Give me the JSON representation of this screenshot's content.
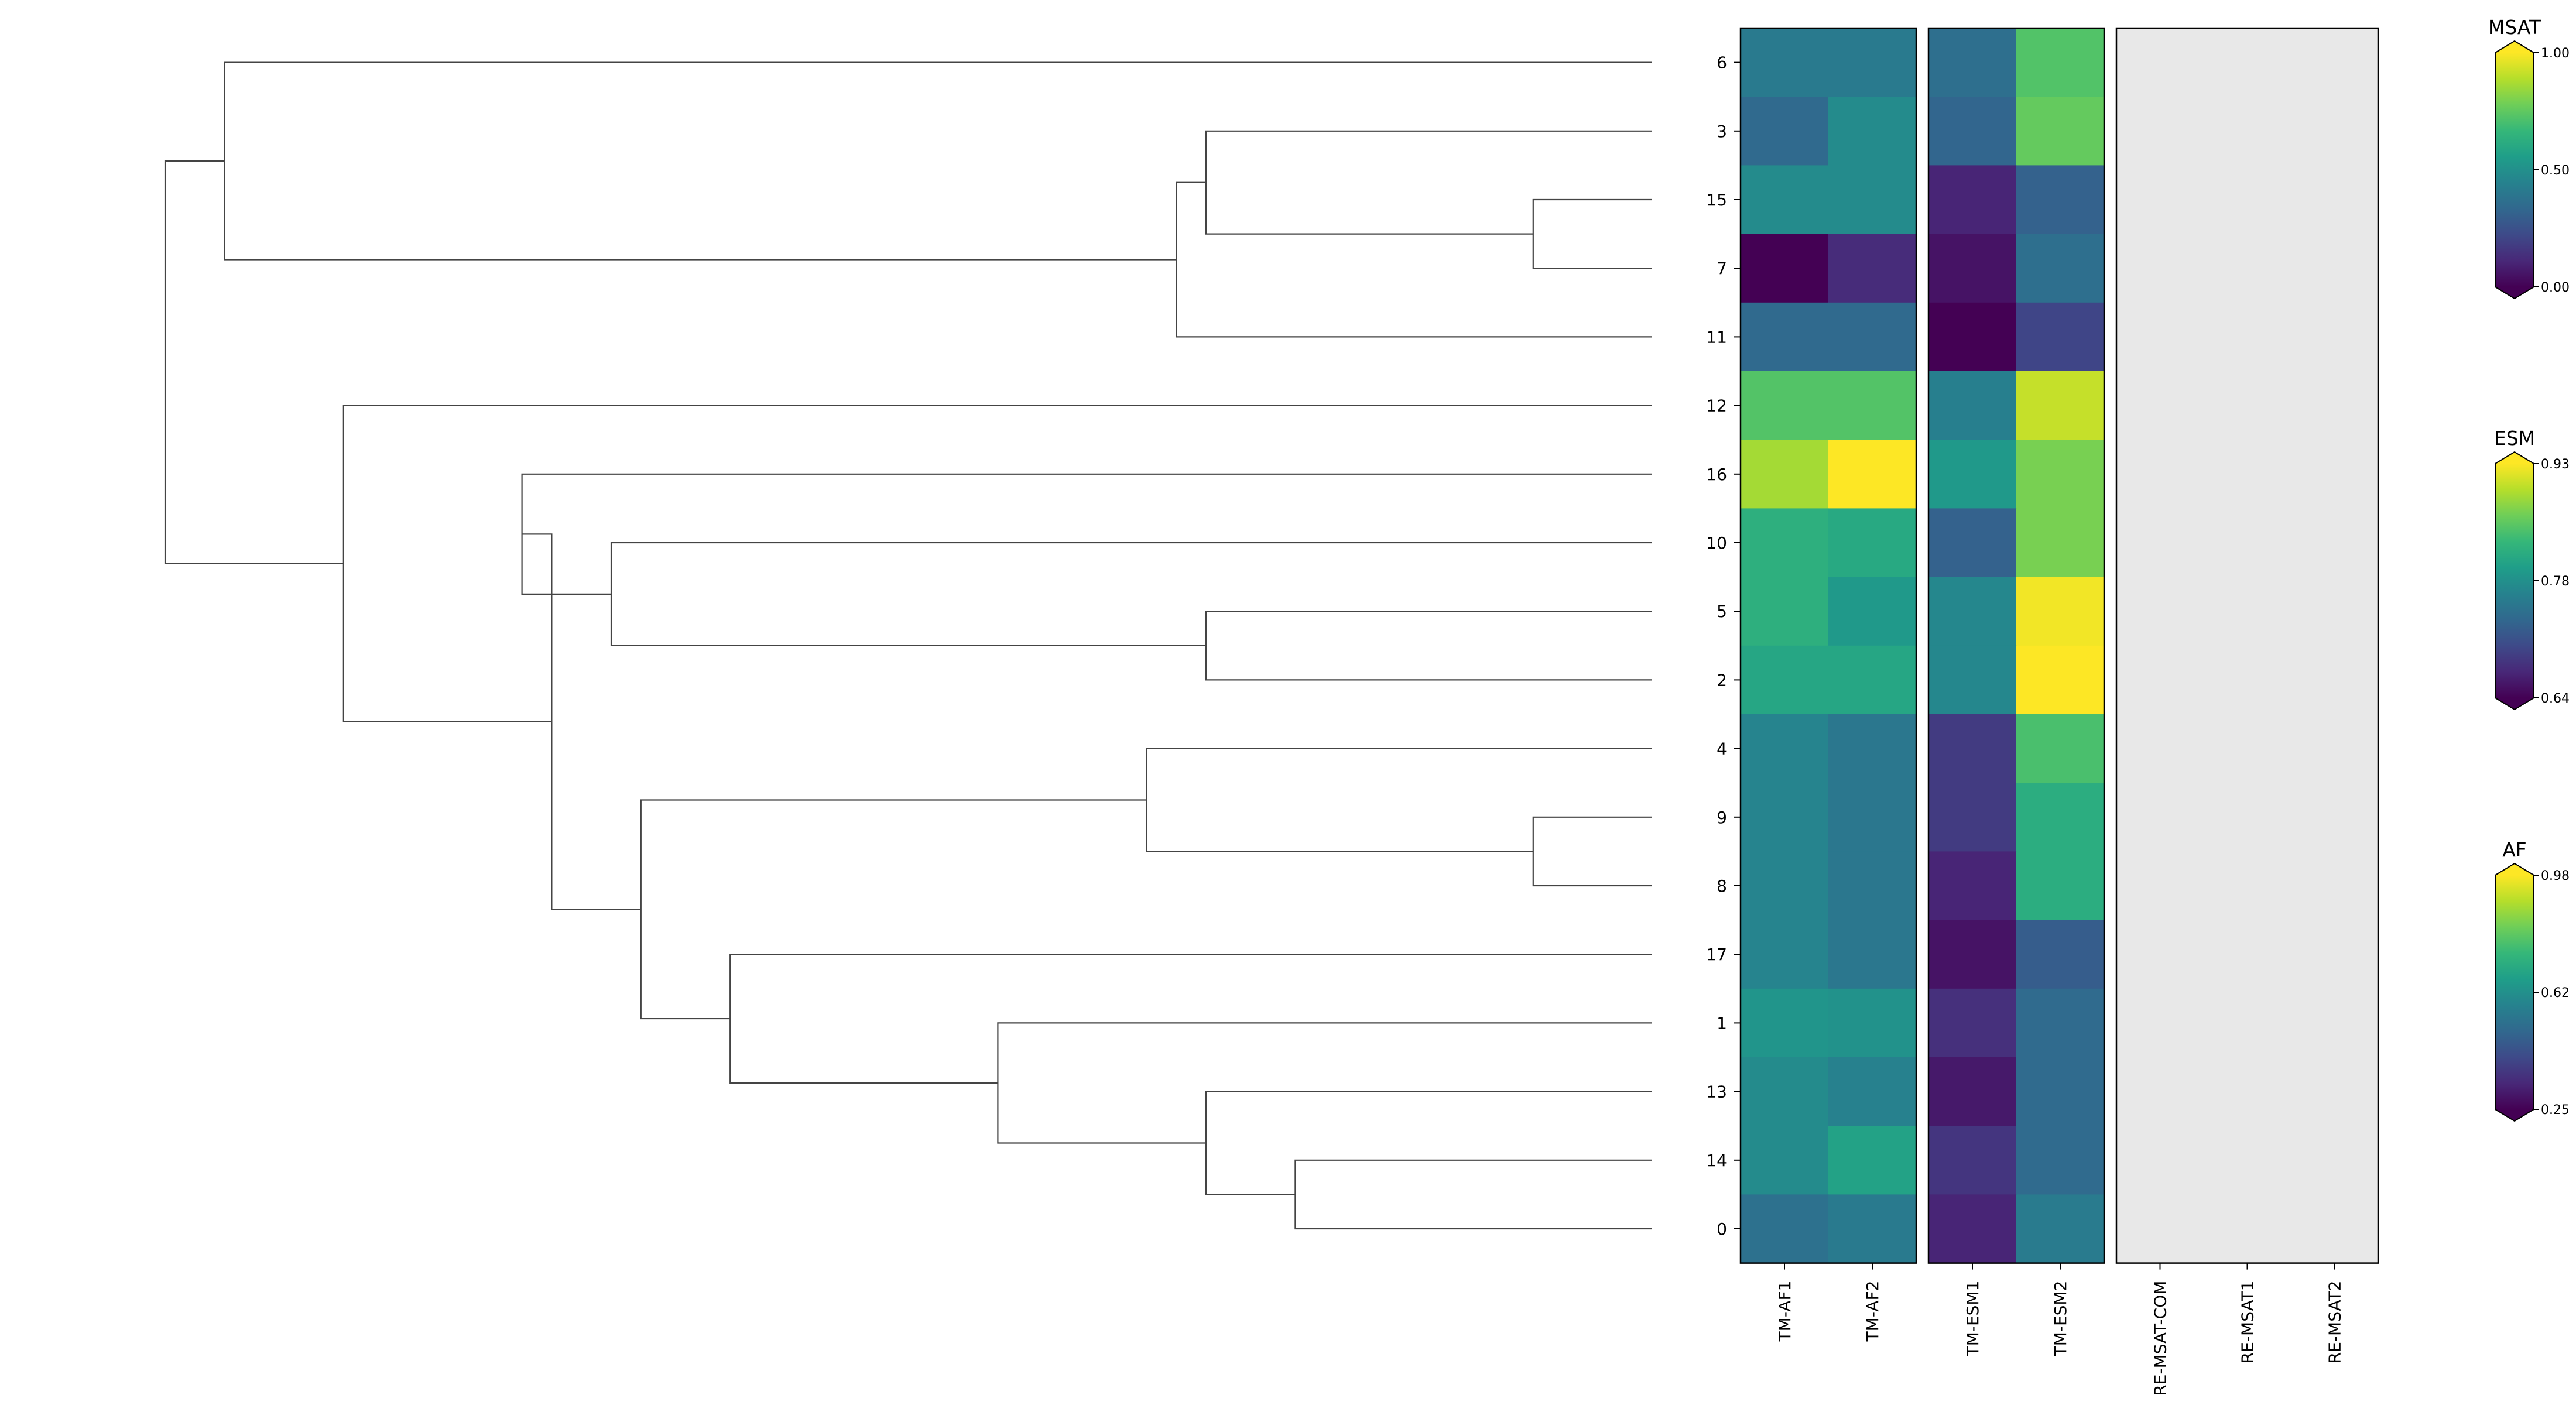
{
  "chart_data": {
    "type": "heatmap",
    "title": "",
    "row_labels": [
      "6",
      "3",
      "15",
      "7",
      "11",
      "12",
      "16",
      "10",
      "5",
      "2",
      "4",
      "9",
      "8",
      "17",
      "1",
      "13",
      "14",
      "0"
    ],
    "dendrogram": {
      "orientation": "left",
      "merges": [
        {
          "id": "A",
          "children": [
            "15",
            "7"
          ],
          "height": 0.54
        },
        {
          "id": "B",
          "children": [
            "3",
            "A"
          ],
          "height": 0.65
        },
        {
          "id": "C",
          "children": [
            "B",
            "11"
          ],
          "height": 0.66
        },
        {
          "id": "D",
          "children": [
            "6",
            "C"
          ],
          "height": 0.98
        },
        {
          "id": "E",
          "children": [
            "5",
            "2"
          ],
          "height": 0.65
        },
        {
          "id": "F",
          "children": [
            "10",
            "E"
          ],
          "height": 0.85
        },
        {
          "id": "G",
          "children": [
            "16",
            "F"
          ],
          "height": 0.88
        },
        {
          "id": "H",
          "children": [
            "9",
            "8"
          ],
          "height": 0.54
        },
        {
          "id": "I",
          "children": [
            "4",
            "H"
          ],
          "height": 0.67
        },
        {
          "id": "J",
          "children": [
            "14",
            "0"
          ],
          "height": 0.62
        },
        {
          "id": "K",
          "children": [
            "13",
            "J"
          ],
          "height": 0.65
        },
        {
          "id": "L",
          "children": [
            "1",
            "K"
          ],
          "height": 0.72
        },
        {
          "id": "M",
          "children": [
            "17",
            "L"
          ],
          "height": 0.81
        },
        {
          "id": "N",
          "children": [
            "I",
            "M"
          ],
          "height": 0.84
        },
        {
          "id": "O",
          "children": [
            "G",
            "N"
          ],
          "height": 0.87
        },
        {
          "id": "P",
          "children": [
            "12",
            "O"
          ],
          "height": 0.94
        },
        {
          "id": "Q",
          "children": [
            "D",
            "P"
          ],
          "height": 1.0
        }
      ]
    },
    "panels": [
      {
        "name": "AF",
        "columns": [
          "TM-AF1",
          "TM-AF2"
        ],
        "colorbar": {
          "label": "AF",
          "ticks": [
            "0.25",
            "0.62",
            "0.98"
          ],
          "min": 0.25,
          "max": 0.98
        },
        "values": [
          [
            0.55,
            0.55
          ],
          [
            0.5,
            0.6
          ],
          [
            0.6,
            0.6
          ],
          [
            0.25,
            0.34
          ],
          [
            0.5,
            0.5
          ],
          [
            0.78,
            0.78
          ],
          [
            0.88,
            0.98
          ],
          [
            0.71,
            0.69
          ],
          [
            0.71,
            0.64
          ],
          [
            0.68,
            0.68
          ],
          [
            0.58,
            0.54
          ],
          [
            0.58,
            0.54
          ],
          [
            0.58,
            0.54
          ],
          [
            0.58,
            0.54
          ],
          [
            0.63,
            0.62
          ],
          [
            0.6,
            0.57
          ],
          [
            0.6,
            0.67
          ],
          [
            0.52,
            0.55
          ]
        ]
      },
      {
        "name": "ESM",
        "columns": [
          "TM-ESM1",
          "TM-ESM2"
        ],
        "colorbar": {
          "label": "ESM",
          "ticks": [
            "0.64",
            "0.78",
            "0.93"
          ],
          "min": 0.64,
          "max": 0.93
        },
        "values": [
          [
            0.745,
            0.85
          ],
          [
            0.735,
            0.86
          ],
          [
            0.67,
            0.73
          ],
          [
            0.655,
            0.745
          ],
          [
            0.64,
            0.7
          ],
          [
            0.765,
            0.905
          ],
          [
            0.795,
            0.87
          ],
          [
            0.73,
            0.87
          ],
          [
            0.775,
            0.925
          ],
          [
            0.775,
            0.935
          ],
          [
            0.69,
            0.845
          ],
          [
            0.69,
            0.82
          ],
          [
            0.67,
            0.82
          ],
          [
            0.655,
            0.725
          ],
          [
            0.68,
            0.74
          ],
          [
            0.66,
            0.74
          ],
          [
            0.685,
            0.74
          ],
          [
            0.67,
            0.76
          ]
        ]
      },
      {
        "name": "MSAT",
        "columns": [
          "RE-MSAT-COM",
          "RE-MSAT1",
          "RE-MSAT2"
        ],
        "colorbar": {
          "label": "MSAT",
          "ticks": [
            "0.00",
            "0.50",
            "1.00"
          ],
          "min": 0.0,
          "max": 1.0
        },
        "values": [
          [
            null,
            null,
            null
          ],
          [
            null,
            null,
            null
          ],
          [
            null,
            null,
            null
          ],
          [
            null,
            null,
            null
          ],
          [
            null,
            null,
            null
          ],
          [
            null,
            null,
            null
          ],
          [
            null,
            null,
            null
          ],
          [
            null,
            null,
            null
          ],
          [
            null,
            null,
            null
          ],
          [
            null,
            null,
            null
          ],
          [
            null,
            null,
            null
          ],
          [
            null,
            null,
            null
          ],
          [
            null,
            null,
            null
          ],
          [
            null,
            null,
            null
          ],
          [
            null,
            null,
            null
          ],
          [
            null,
            null,
            null
          ],
          [
            null,
            null,
            null
          ],
          [
            null,
            null,
            null
          ]
        ]
      }
    ],
    "colormap": "viridis",
    "missing_color": "#e8e8e8"
  }
}
